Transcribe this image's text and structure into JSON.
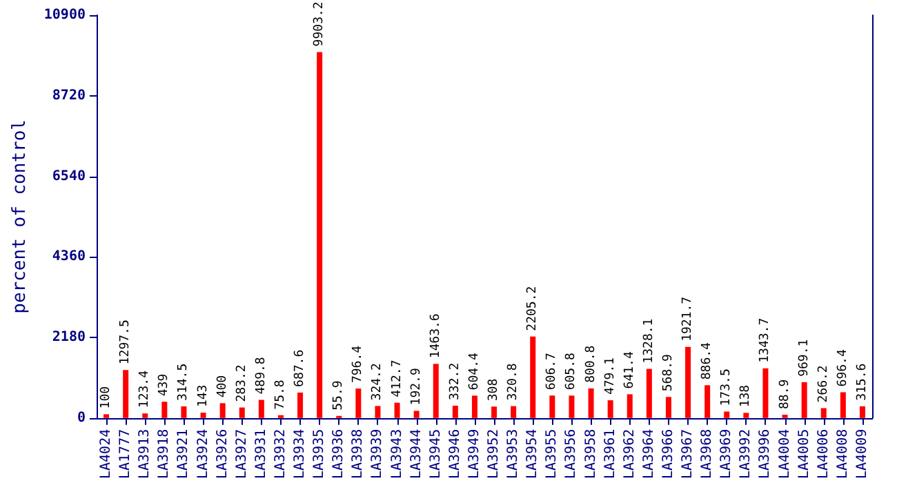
{
  "chart_data": {
    "type": "bar",
    "ylabel": "percent of control",
    "categories": [
      "LA4024",
      "LA1777",
      "LA3913",
      "LA3918",
      "LA3921",
      "LA3924",
      "LA3926",
      "LA3927",
      "LA3931",
      "LA3932",
      "LA3934",
      "LA3935",
      "LA3936",
      "LA3938",
      "LA3939",
      "LA3943",
      "LA3944",
      "LA3945",
      "LA3946",
      "LA3949",
      "LA3952",
      "LA3953",
      "LA3954",
      "LA3955",
      "LA3956",
      "LA3958",
      "LA3961",
      "LA3962",
      "LA3964",
      "LA3966",
      "LA3967",
      "LA3968",
      "LA3969",
      "LA3992",
      "LA3996",
      "LA4004",
      "LA4005",
      "LA4006",
      "LA4008",
      "LA4009"
    ],
    "values": [
      100,
      1297.5,
      123.4,
      439,
      314.5,
      143,
      400,
      283.2,
      489.8,
      75.8,
      687.6,
      9903.2,
      55.9,
      796.4,
      324.2,
      412.7,
      192.9,
      1463.6,
      332.2,
      604.4,
      308,
      320.8,
      2205.2,
      606.7,
      605.8,
      800.8,
      479.1,
      641.4,
      1328.1,
      568.9,
      1921.7,
      886.4,
      173.5,
      138,
      1343.7,
      88.9,
      969.1,
      266.2,
      696.4,
      315.6
    ],
    "color": "#ff0000",
    "ylim": [
      0,
      10900
    ],
    "yticks": [
      0,
      2180,
      4360,
      6540,
      8720,
      10900
    ],
    "data_labels": true,
    "grid": false
  }
}
